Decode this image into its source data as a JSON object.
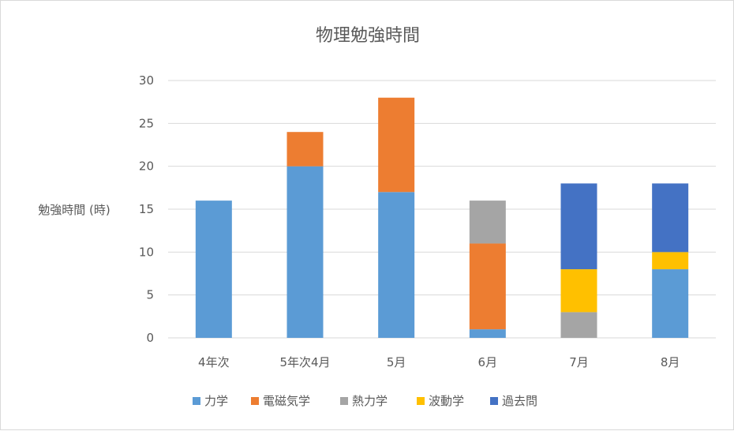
{
  "chart_data": {
    "type": "bar",
    "stacked": true,
    "title": "物理勉強時間",
    "ylabel": "勉強時間 (時)",
    "xlabel": "",
    "ylim": [
      0,
      30
    ],
    "yticks": [
      0,
      5,
      10,
      15,
      20,
      25,
      30
    ],
    "grid": true,
    "legend": "bottom",
    "categories": [
      "4年次",
      "5年次4月",
      "5月",
      "6月",
      "7月",
      "8月"
    ],
    "series": [
      {
        "name": "力学",
        "color": "#5B9BD5",
        "values": [
          16,
          20,
          17,
          1,
          0,
          8
        ]
      },
      {
        "name": "電磁気学",
        "color": "#ED7D31",
        "values": [
          0,
          4,
          11,
          10,
          0,
          0
        ]
      },
      {
        "name": "熱力学",
        "color": "#A5A5A5",
        "values": [
          0,
          0,
          0,
          5,
          3,
          0
        ]
      },
      {
        "name": "波動学",
        "color": "#FFC000",
        "values": [
          0,
          0,
          0,
          0,
          5,
          2
        ]
      },
      {
        "name": "過去問",
        "color": "#4472C4",
        "values": [
          0,
          0,
          0,
          0,
          10,
          8
        ]
      }
    ]
  }
}
